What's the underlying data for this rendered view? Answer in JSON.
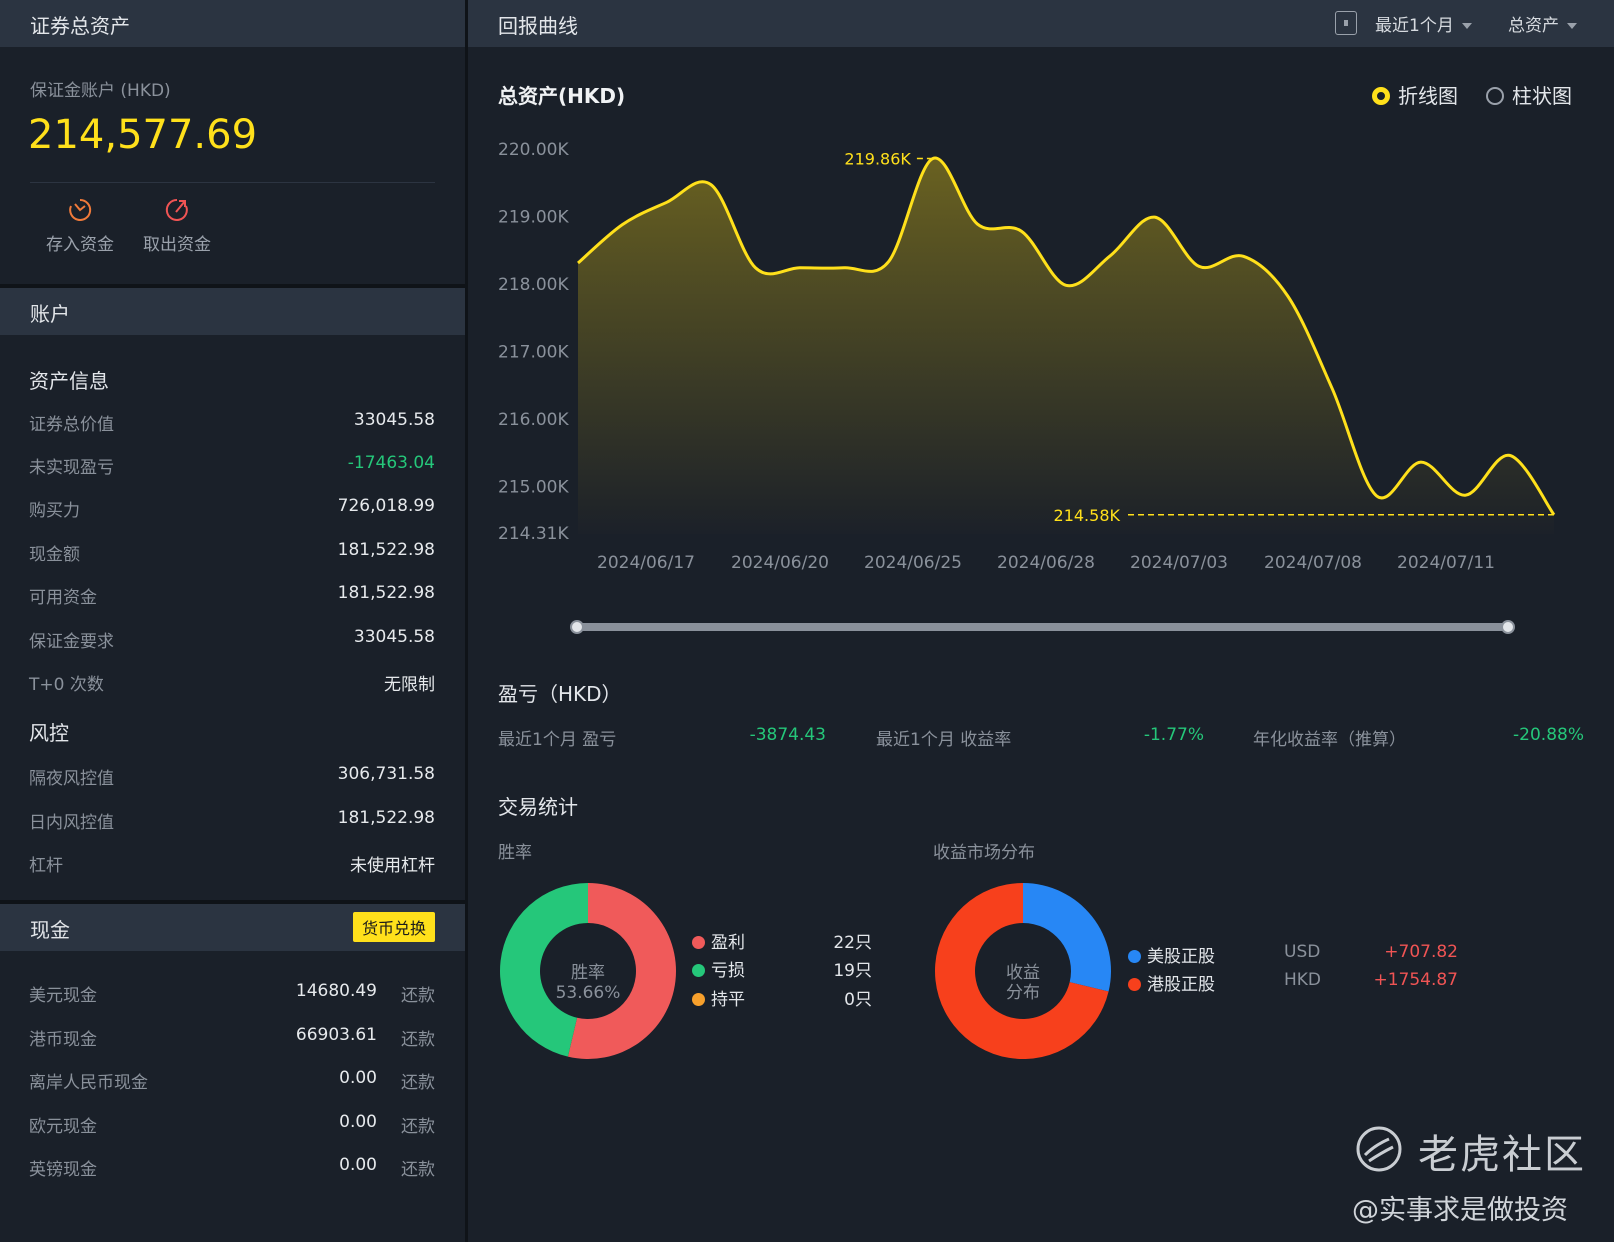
{
  "left": {
    "header_title": "证券总资产",
    "account_label": "保证金账户 (HKD)",
    "account_value": "214,577.69",
    "deposit_label": "存入资金",
    "withdraw_label": "取出资金",
    "account_section": "账户",
    "asset_info_title": "资产信息",
    "asset_rows": [
      {
        "label": "证券总价值",
        "value": "33045.58"
      },
      {
        "label": "未实现盈亏",
        "value": "-17463.04"
      },
      {
        "label": "购买力",
        "value": "726,018.99"
      },
      {
        "label": "现金额",
        "value": "181,522.98"
      },
      {
        "label": "可用资金",
        "value": "181,522.98"
      },
      {
        "label": "保证金要求",
        "value": "33045.58"
      },
      {
        "label": "T+0 次数",
        "value": "无限制"
      }
    ],
    "risk_title": "风控",
    "risk_rows": [
      {
        "label": "隔夜风控值",
        "value": "306,731.58"
      },
      {
        "label": "日内风控值",
        "value": "181,522.98"
      },
      {
        "label": "杠杆",
        "value": "未使用杠杆"
      }
    ],
    "cash_title": "现金",
    "fx_button": "货币兑换",
    "repay_label": "还款",
    "cash_rows": [
      {
        "label": "美元现金",
        "value": "14680.49"
      },
      {
        "label": "港币现金",
        "value": "66903.61"
      },
      {
        "label": "离岸人民币现金",
        "value": "0.00"
      },
      {
        "label": "欧元现金",
        "value": "0.00"
      },
      {
        "label": "英镑现金",
        "value": "0.00"
      }
    ]
  },
  "right": {
    "header_title": "回报曲线",
    "period_select": "最近1个月",
    "metric_select": "总资产",
    "chart_title": "总资产(HKD)",
    "radio_line": "折线图",
    "radio_bar": "柱状图",
    "pl_title": "盈亏（HKD）",
    "pl_items": [
      {
        "label": "最近1个月 盈亏",
        "value": "-3874.43"
      },
      {
        "label": "最近1个月 收益率",
        "value": "-1.77%"
      },
      {
        "label": "年化收益率（推算）",
        "value": "-20.88%"
      }
    ],
    "trade_title": "交易统计",
    "winrate_label": "胜率",
    "market_label": "收益市场分布",
    "winrate_center_line1": "胜率",
    "winrate_center_line2": "53.66%",
    "market_center_line1": "收益",
    "market_center_line2": "分布",
    "winrate_legend": [
      {
        "name": "盈利",
        "count": "22只",
        "color": "#f05a5a"
      },
      {
        "name": "亏损",
        "count": "19只",
        "color": "#25c77a"
      },
      {
        "name": "持平",
        "count": "0只",
        "color": "#f7a02c"
      }
    ],
    "market_legend": [
      {
        "name": "美股正股",
        "currency": "USD",
        "value": "+707.82",
        "color": "#2787f5"
      },
      {
        "name": "港股正股",
        "currency": "HKD",
        "value": "+1754.87",
        "color": "#f7401c"
      }
    ],
    "watermark_brand": "老虎社区",
    "watermark_user": "@实事求是做投资"
  },
  "chart_data": [
    {
      "type": "area",
      "title": "总资产(HKD)",
      "xlabel": "",
      "ylabel": "",
      "y_ticks": [
        "220.00K",
        "219.00K",
        "218.00K",
        "217.00K",
        "216.00K",
        "215.00K",
        "214.31K"
      ],
      "y_tick_values": [
        220.0,
        219.0,
        218.0,
        217.0,
        216.0,
        215.0,
        214.31
      ],
      "x_ticks": [
        "2024/06/17",
        "2024/06/20",
        "2024/06/25",
        "2024/06/28",
        "2024/07/03",
        "2024/07/08",
        "2024/07/11"
      ],
      "ylim": [
        214.31,
        220.0
      ],
      "max_label": "219.86K",
      "min_label": "214.58K",
      "max_value": 219.86,
      "last_value": 214.58,
      "series": [
        {
          "values": [
            218.31,
            218.88,
            219.21,
            219.47,
            218.24,
            218.24,
            218.24,
            218.33,
            219.86,
            218.89,
            218.78,
            217.98,
            218.42,
            218.99,
            218.26,
            218.41,
            217.82,
            216.45,
            214.86,
            215.36,
            214.87,
            215.46,
            214.58
          ]
        }
      ],
      "line_color": "#ffe01b",
      "legend": "none"
    },
    {
      "type": "pie",
      "title": "胜率",
      "labels": [
        "盈利",
        "亏损",
        "持平"
      ],
      "values": [
        22,
        19,
        0
      ],
      "colors": [
        "#f05a5a",
        "#25c77a",
        "#f7a02c"
      ]
    },
    {
      "type": "pie",
      "title": "收益市场分布",
      "labels": [
        "美股正股",
        "港股正股"
      ],
      "values": [
        707.82,
        1754.87
      ],
      "colors": [
        "#2787f5",
        "#f7401c"
      ]
    }
  ]
}
